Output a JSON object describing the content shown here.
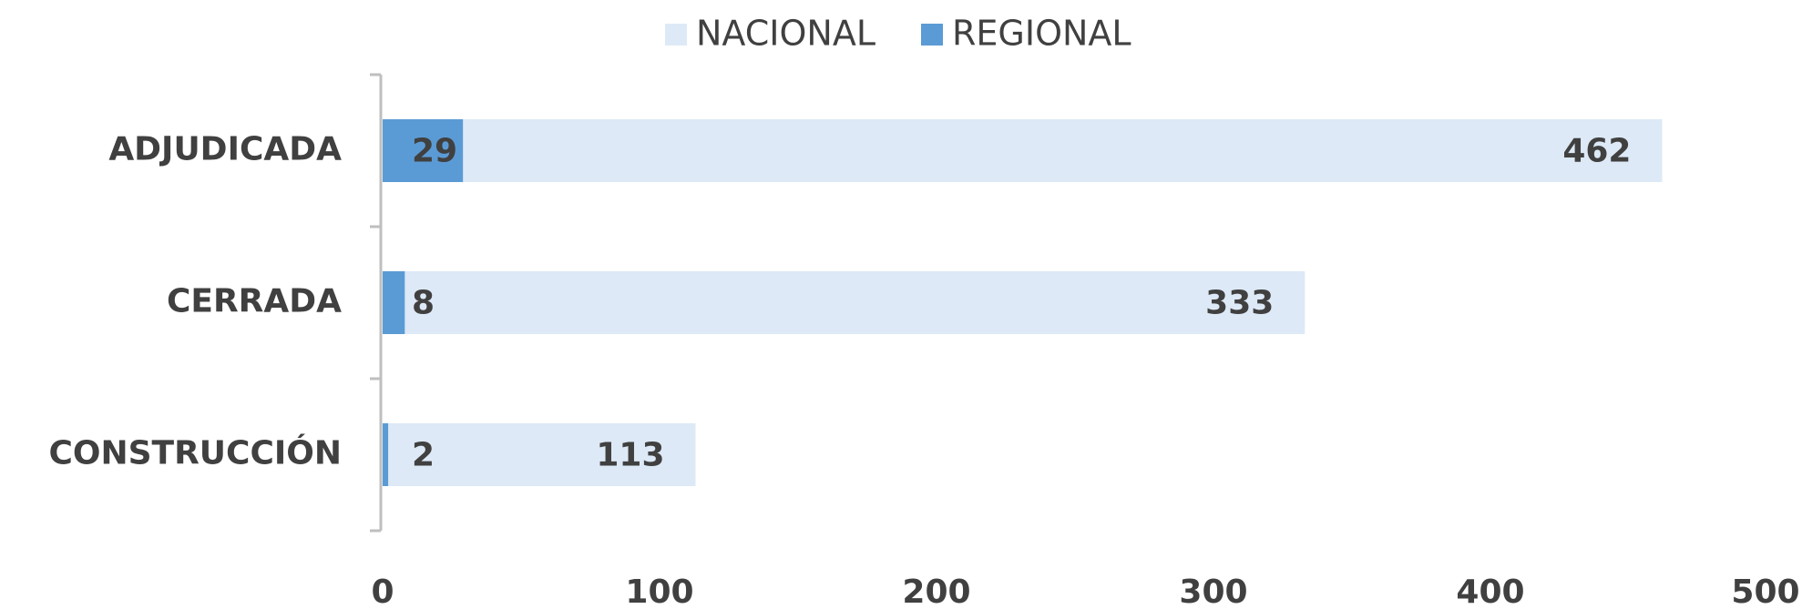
{
  "chart_data": {
    "type": "bar",
    "orientation": "horizontal",
    "overlap": true,
    "categories": [
      "ADJUDICADA",
      "CERRADA",
      "CONSTRUCCIÓN"
    ],
    "series": [
      {
        "name": "NACIONAL",
        "color": "#dde9f6",
        "values": [
          462,
          333,
          113
        ]
      },
      {
        "name": "REGIONAL",
        "color": "#5b9bd5",
        "values": [
          29,
          8,
          2
        ]
      }
    ],
    "xlim": [
      0,
      500
    ],
    "xticks": [
      0,
      100,
      200,
      300,
      400,
      500
    ],
    "grid": false,
    "legend": "top"
  }
}
